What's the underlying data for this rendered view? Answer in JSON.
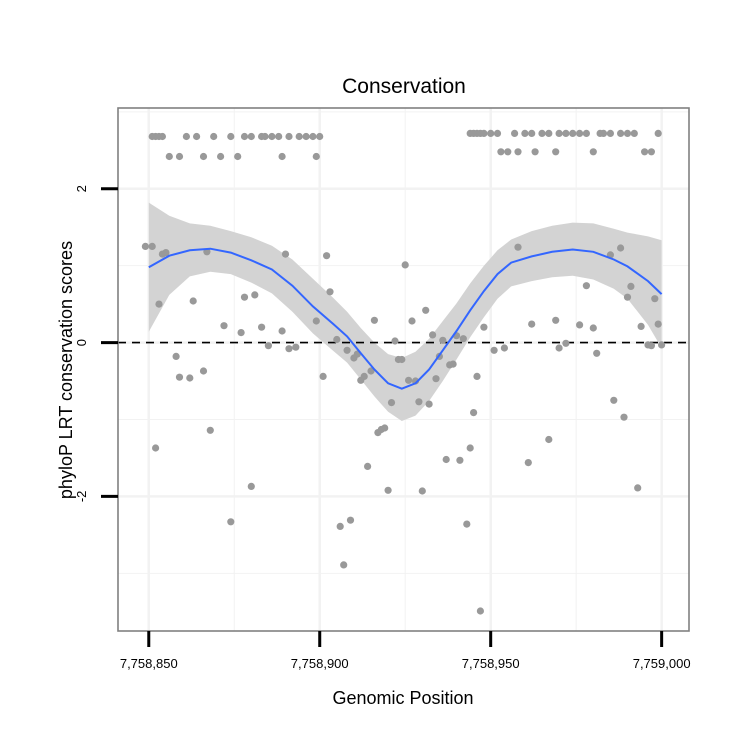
{
  "chart_data": {
    "type": "scatter",
    "title": "Conservation",
    "xlabel": "Genomic Position",
    "ylabel": "phyloP LRT conservation scores",
    "xlim": [
      7758841,
      7759008
    ],
    "ylim": [
      -3.75,
      3.05
    ],
    "x_ticks": [
      7758850,
      7758900,
      7758950,
      7759000
    ],
    "x_tick_labels": [
      "7,758,850",
      "7,758,900",
      "7,758,950",
      "7,759,000"
    ],
    "y_ticks": [
      -2,
      0,
      2
    ],
    "y_tick_labels": [
      "-2",
      "0",
      "2"
    ],
    "grid": true,
    "reference_line": {
      "y": 0,
      "style": "dashed",
      "color": "#000000"
    },
    "colors": {
      "points": "#999999",
      "smooth_line": "#3366ff",
      "ribbon": "#d3d3d3",
      "grid": "#f2f2f2",
      "panel_border": "#808080"
    },
    "points": [
      [
        7758851,
        2.68
      ],
      [
        7758852,
        2.68
      ],
      [
        7758853,
        2.68
      ],
      [
        7758854,
        2.68
      ],
      [
        7758856,
        2.42
      ],
      [
        7758859,
        2.42
      ],
      [
        7758861,
        2.68
      ],
      [
        7758864,
        2.68
      ],
      [
        7758866,
        2.42
      ],
      [
        7758869,
        2.68
      ],
      [
        7758871,
        2.42
      ],
      [
        7758874,
        2.68
      ],
      [
        7758876,
        2.42
      ],
      [
        7758878,
        2.68
      ],
      [
        7758880,
        2.68
      ],
      [
        7758883,
        2.68
      ],
      [
        7758884,
        2.68
      ],
      [
        7758886,
        2.68
      ],
      [
        7758888,
        2.68
      ],
      [
        7758889,
        2.42
      ],
      [
        7758891,
        2.68
      ],
      [
        7758894,
        2.68
      ],
      [
        7758896,
        2.68
      ],
      [
        7758898,
        2.68
      ],
      [
        7758899,
        2.42
      ],
      [
        7758900,
        2.68
      ],
      [
        7758944,
        2.72
      ],
      [
        7758945,
        2.72
      ],
      [
        7758946,
        2.72
      ],
      [
        7758947,
        2.72
      ],
      [
        7758948,
        2.72
      ],
      [
        7758950,
        2.72
      ],
      [
        7758952,
        2.72
      ],
      [
        7758953,
        2.48
      ],
      [
        7758955,
        2.48
      ],
      [
        7758957,
        2.72
      ],
      [
        7758958,
        2.48
      ],
      [
        7758960,
        2.72
      ],
      [
        7758962,
        2.72
      ],
      [
        7758963,
        2.48
      ],
      [
        7758965,
        2.72
      ],
      [
        7758967,
        2.72
      ],
      [
        7758969,
        2.48
      ],
      [
        7758970,
        2.72
      ],
      [
        7758972,
        2.72
      ],
      [
        7758974,
        2.72
      ],
      [
        7758976,
        2.72
      ],
      [
        7758978,
        2.72
      ],
      [
        7758980,
        2.48
      ],
      [
        7758982,
        2.72
      ],
      [
        7758983,
        2.72
      ],
      [
        7758985,
        2.72
      ],
      [
        7758988,
        2.72
      ],
      [
        7758990,
        2.72
      ],
      [
        7758992,
        2.72
      ],
      [
        7758995,
        2.48
      ],
      [
        7758997,
        2.48
      ],
      [
        7758999,
        2.72
      ],
      [
        7758849,
        1.25
      ],
      [
        7758851,
        1.25
      ],
      [
        7758852,
        -1.37
      ],
      [
        7758853,
        0.5
      ],
      [
        7758854,
        1.15
      ],
      [
        7758855,
        1.17
      ],
      [
        7758858,
        -0.18
      ],
      [
        7758859,
        -0.45
      ],
      [
        7758862,
        -0.46
      ],
      [
        7758863,
        0.54
      ],
      [
        7758866,
        -0.37
      ],
      [
        7758867,
        1.18
      ],
      [
        7758868,
        -1.14
      ],
      [
        7758872,
        0.22
      ],
      [
        7758874,
        -2.33
      ],
      [
        7758877,
        0.13
      ],
      [
        7758878,
        0.59
      ],
      [
        7758880,
        -1.87
      ],
      [
        7758881,
        0.62
      ],
      [
        7758883,
        0.2
      ],
      [
        7758885,
        -0.04
      ],
      [
        7758889,
        0.15
      ],
      [
        7758890,
        1.15
      ],
      [
        7758891,
        -0.08
      ],
      [
        7758893,
        -0.06
      ],
      [
        7758899,
        0.28
      ],
      [
        7758901,
        -0.44
      ],
      [
        7758902,
        1.13
      ],
      [
        7758903,
        0.66
      ],
      [
        7758905,
        0.04
      ],
      [
        7758906,
        -2.39
      ],
      [
        7758907,
        -2.89
      ],
      [
        7758908,
        -0.1
      ],
      [
        7758909,
        -2.31
      ],
      [
        7758910,
        -0.2
      ],
      [
        7758911,
        -0.15
      ],
      [
        7758912,
        -0.49
      ],
      [
        7758913,
        -0.44
      ],
      [
        7758914,
        -1.61
      ],
      [
        7758915,
        -0.37
      ],
      [
        7758916,
        0.29
      ],
      [
        7758917,
        -1.17
      ],
      [
        7758918,
        -1.13
      ],
      [
        7758919,
        -1.11
      ],
      [
        7758920,
        -1.92
      ],
      [
        7758921,
        -0.78
      ],
      [
        7758922,
        0.02
      ],
      [
        7758923,
        -0.22
      ],
      [
        7758924,
        -0.22
      ],
      [
        7758925,
        1.01
      ],
      [
        7758926,
        -0.49
      ],
      [
        7758927,
        0.28
      ],
      [
        7758928,
        -0.5
      ],
      [
        7758929,
        -0.77
      ],
      [
        7758930,
        -1.93
      ],
      [
        7758931,
        0.42
      ],
      [
        7758932,
        -0.8
      ],
      [
        7758933,
        0.1
      ],
      [
        7758934,
        -0.47
      ],
      [
        7758935,
        -0.18
      ],
      [
        7758936,
        0.03
      ],
      [
        7758937,
        -1.52
      ],
      [
        7758938,
        -0.29
      ],
      [
        7758939,
        -0.28
      ],
      [
        7758940,
        0.09
      ],
      [
        7758941,
        -1.53
      ],
      [
        7758942,
        0.05
      ],
      [
        7758943,
        -2.36
      ],
      [
        7758944,
        -1.37
      ],
      [
        7758945,
        -0.91
      ],
      [
        7758946,
        -0.44
      ],
      [
        7758947,
        -3.49
      ],
      [
        7758948,
        0.2
      ],
      [
        7758951,
        -0.1
      ],
      [
        7758954,
        -0.07
      ],
      [
        7758958,
        1.24
      ],
      [
        7758961,
        -1.56
      ],
      [
        7758962,
        0.24
      ],
      [
        7758967,
        -1.26
      ],
      [
        7758969,
        0.29
      ],
      [
        7758970,
        -0.07
      ],
      [
        7758972,
        -0.01
      ],
      [
        7758976,
        0.23
      ],
      [
        7758978,
        0.74
      ],
      [
        7758980,
        0.19
      ],
      [
        7758981,
        -0.14
      ],
      [
        7758985,
        1.14
      ],
      [
        7758986,
        -0.75
      ],
      [
        7758988,
        1.23
      ],
      [
        7758989,
        -0.97
      ],
      [
        7758990,
        0.59
      ],
      [
        7758991,
        0.73
      ],
      [
        7758993,
        -1.89
      ],
      [
        7758994,
        0.21
      ],
      [
        7758996,
        -0.03
      ],
      [
        7758997,
        -0.04
      ],
      [
        7758998,
        0.57
      ],
      [
        7758999,
        0.24
      ],
      [
        7759000,
        -0.03
      ]
    ],
    "smooth_line": [
      [
        7758850,
        0.98
      ],
      [
        7758856,
        1.13
      ],
      [
        7758862,
        1.2
      ],
      [
        7758868,
        1.22
      ],
      [
        7758874,
        1.17
      ],
      [
        7758880,
        1.07
      ],
      [
        7758886,
        0.95
      ],
      [
        7758892,
        0.74
      ],
      [
        7758898,
        0.47
      ],
      [
        7758904,
        0.24
      ],
      [
        7758908,
        0.08
      ],
      [
        7758912,
        -0.14
      ],
      [
        7758916,
        -0.35
      ],
      [
        7758920,
        -0.53
      ],
      [
        7758924,
        -0.6
      ],
      [
        7758928,
        -0.53
      ],
      [
        7758932,
        -0.35
      ],
      [
        7758936,
        -0.1
      ],
      [
        7758940,
        0.15
      ],
      [
        7758944,
        0.42
      ],
      [
        7758948,
        0.67
      ],
      [
        7758952,
        0.89
      ],
      [
        7758956,
        1.04
      ],
      [
        7758962,
        1.12
      ],
      [
        7758968,
        1.18
      ],
      [
        7758974,
        1.21
      ],
      [
        7758980,
        1.18
      ],
      [
        7758986,
        1.08
      ],
      [
        7758990,
        0.99
      ],
      [
        7758996,
        0.8
      ],
      [
        7759000,
        0.63
      ]
    ],
    "ribbon_upper": [
      [
        7758850,
        1.82
      ],
      [
        7758856,
        1.65
      ],
      [
        7758862,
        1.55
      ],
      [
        7758868,
        1.52
      ],
      [
        7758874,
        1.45
      ],
      [
        7758880,
        1.37
      ],
      [
        7758886,
        1.26
      ],
      [
        7758892,
        1.08
      ],
      [
        7758898,
        0.83
      ],
      [
        7758904,
        0.58
      ],
      [
        7758908,
        0.4
      ],
      [
        7758912,
        0.19
      ],
      [
        7758916,
        0.0
      ],
      [
        7758920,
        -0.15
      ],
      [
        7758924,
        -0.2
      ],
      [
        7758928,
        -0.12
      ],
      [
        7758932,
        0.05
      ],
      [
        7758936,
        0.28
      ],
      [
        7758940,
        0.51
      ],
      [
        7758944,
        0.77
      ],
      [
        7758948,
        1.0
      ],
      [
        7758952,
        1.2
      ],
      [
        7758956,
        1.34
      ],
      [
        7758962,
        1.45
      ],
      [
        7758968,
        1.52
      ],
      [
        7758974,
        1.56
      ],
      [
        7758980,
        1.55
      ],
      [
        7758986,
        1.48
      ],
      [
        7758990,
        1.43
      ],
      [
        7758996,
        1.38
      ],
      [
        7759000,
        1.33
      ]
    ],
    "ribbon_lower": [
      [
        7758850,
        0.14
      ],
      [
        7758856,
        0.62
      ],
      [
        7758862,
        0.86
      ],
      [
        7758868,
        0.92
      ],
      [
        7758874,
        0.89
      ],
      [
        7758880,
        0.78
      ],
      [
        7758886,
        0.64
      ],
      [
        7758892,
        0.4
      ],
      [
        7758898,
        0.12
      ],
      [
        7758904,
        -0.11
      ],
      [
        7758908,
        -0.26
      ],
      [
        7758912,
        -0.48
      ],
      [
        7758916,
        -0.7
      ],
      [
        7758920,
        -0.9
      ],
      [
        7758924,
        -1.02
      ],
      [
        7758928,
        -0.95
      ],
      [
        7758932,
        -0.76
      ],
      [
        7758936,
        -0.5
      ],
      [
        7758940,
        -0.22
      ],
      [
        7758944,
        0.07
      ],
      [
        7758948,
        0.33
      ],
      [
        7758952,
        0.57
      ],
      [
        7758956,
        0.73
      ],
      [
        7758962,
        0.8
      ],
      [
        7758968,
        0.85
      ],
      [
        7758974,
        0.87
      ],
      [
        7758980,
        0.82
      ],
      [
        7758986,
        0.7
      ],
      [
        7758990,
        0.57
      ],
      [
        7758996,
        0.23
      ],
      [
        7759000,
        -0.07
      ]
    ]
  }
}
